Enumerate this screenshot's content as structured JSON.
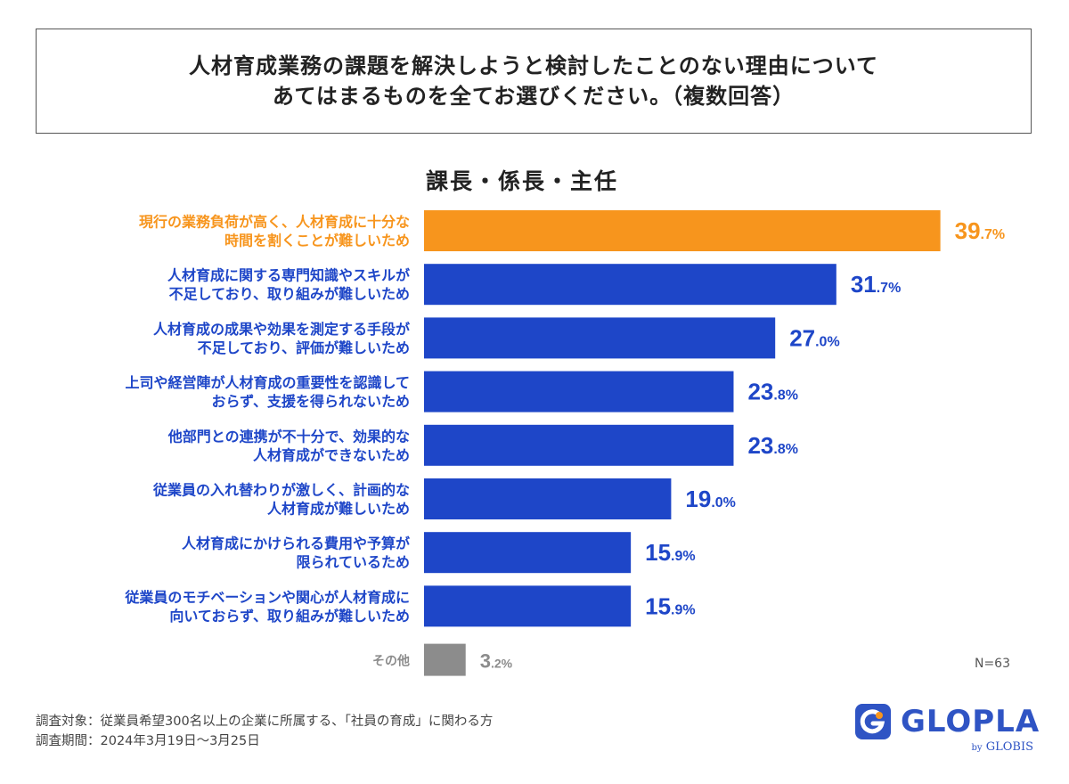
{
  "question": {
    "line1": "人材育成業務の課題を解決しようと検討したことのない理由について",
    "line2": "あてはまるものを全てお選びください。（複数回答）"
  },
  "chart_data": {
    "type": "bar",
    "orientation": "horizontal",
    "title": "課長・係長・主任",
    "unit": "%",
    "xlim": [
      0,
      50
    ],
    "grid": false,
    "categories": [
      [
        "現行の業務負荷が高く、人材育成に十分な",
        "時間を割くことが難しいため"
      ],
      [
        "人材育成に関する専門知識やスキルが",
        "不足しており、取り組みが難しいため"
      ],
      [
        "人材育成の成果や効果を測定する手段が",
        "不足しており、評価が難しいため"
      ],
      [
        "上司や経営陣が人材育成の重要性を認識して",
        "おらず、支援を得られないため"
      ],
      [
        "他部門との連携が不十分で、効果的な",
        "人材育成ができないため"
      ],
      [
        "従業員の入れ替わりが激しく、計画的な",
        "人材育成が難しいため"
      ],
      [
        "人材育成にかけられる費用や予算が",
        "限られているため"
      ],
      [
        "従業員のモチベーションや関心が人材育成に",
        "向いておらず、取り組みが難しいため"
      ],
      [
        "その他"
      ]
    ],
    "values": [
      39.7,
      31.7,
      27.0,
      23.8,
      23.8,
      19.0,
      15.9,
      15.9,
      3.2
    ],
    "value_labels": [
      [
        "39",
        ".7%"
      ],
      [
        "31",
        ".7%"
      ],
      [
        "27",
        ".0%"
      ],
      [
        "23",
        ".8%"
      ],
      [
        "23",
        ".8%"
      ],
      [
        "19",
        ".0%"
      ],
      [
        "15",
        ".9%"
      ],
      [
        "15",
        ".9%"
      ],
      [
        "3",
        ".2%"
      ]
    ],
    "colors": [
      "#f7951d",
      "#1e46c8",
      "#1e46c8",
      "#1e46c8",
      "#1e46c8",
      "#1e46c8",
      "#1e46c8",
      "#1e46c8",
      "#8c8c8c"
    ],
    "label_colors": [
      "#f7951d",
      "#1e46c8",
      "#1e46c8",
      "#1e46c8",
      "#1e46c8",
      "#1e46c8",
      "#1e46c8",
      "#1e46c8",
      "#8c8c8c"
    ]
  },
  "sample_size": "N=63",
  "footnote": {
    "line1": "調査対象：従業員希望300名以上の企業に所属する、「社員の育成」に関わる方",
    "line2": "調査期間：2024年3月19日〜3月25日"
  },
  "logo": {
    "name": "GLOPLA",
    "by_prefix": "by",
    "by_name": "GLOBIS",
    "icon": "glopla-logo-icon",
    "color": "#2f54c4"
  }
}
